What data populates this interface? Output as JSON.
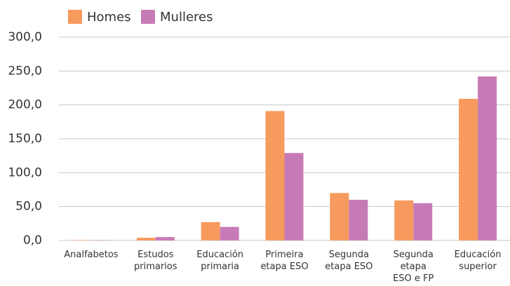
{
  "chart_data": {
    "type": "bar",
    "categories": [
      "Analfabetos",
      "Estudos\nprimarios",
      "Educación\nprimaria",
      "Primeira\netapa ESO",
      "Segunda\netapa ESO",
      "Segunda\netapa\nESO e FP",
      "Educación\nsuperior"
    ],
    "series": [
      {
        "name": "Homes",
        "color": "#f79a5e",
        "values": [
          0.5,
          4,
          27,
          191,
          70,
          59,
          209
        ]
      },
      {
        "name": "Mulleres",
        "color": "#c77bb6",
        "values": [
          0.5,
          5,
          20,
          129,
          60,
          55,
          242
        ]
      }
    ],
    "ylim": [
      0,
      300
    ],
    "yticks": [
      {
        "value": 0,
        "label": "0,0"
      },
      {
        "value": 50,
        "label": "50,0"
      },
      {
        "value": 100,
        "label": "100,0"
      },
      {
        "value": 150,
        "label": "150,0"
      },
      {
        "value": 200,
        "label": "200,0"
      },
      {
        "value": 250,
        "label": "250,0"
      },
      {
        "value": 300,
        "label": "300,0"
      }
    ],
    "grid": true
  }
}
